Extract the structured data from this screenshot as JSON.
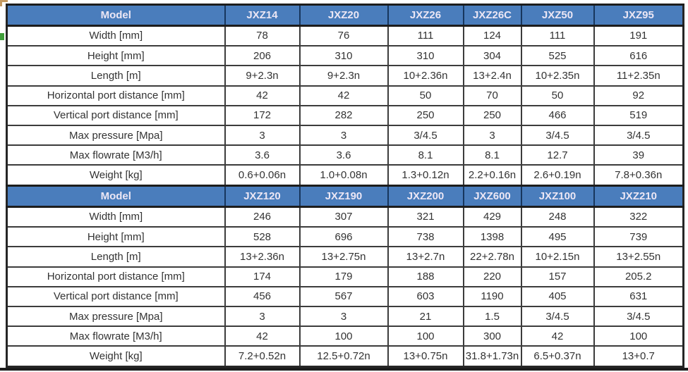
{
  "table": {
    "header_label": "Model",
    "row_labels": [
      "Width [mm]",
      "Height [mm]",
      "Length [m]",
      "Horizontal port distance [mm]",
      "Vertical port distance  [mm]",
      "Max pressure [Mpa]",
      "Max flowrate  [M3/h]",
      "Weight [kg]"
    ],
    "sections": [
      {
        "models": [
          "JXZ14",
          "JXZ20",
          "JXZ26",
          "JXZ26C",
          "JXZ50",
          "JXZ95"
        ],
        "rows": [
          [
            "78",
            "76",
            "111",
            "124",
            "111",
            "191"
          ],
          [
            "206",
            "310",
            "310",
            "304",
            "525",
            "616"
          ],
          [
            "9+2.3n",
            "9+2.3n",
            "10+2.36n",
            "13+2.4n",
            "10+2.35n",
            "11+2.35n"
          ],
          [
            "42",
            "42",
            "50",
            "70",
            "50",
            "92"
          ],
          [
            "172",
            "282",
            "250",
            "250",
            "466",
            "519"
          ],
          [
            "3",
            "3",
            "3/4.5",
            "3",
            "3/4.5",
            "3/4.5"
          ],
          [
            "3.6",
            "3.6",
            "8.1",
            "8.1",
            "12.7",
            "39"
          ],
          [
            "0.6+0.06n",
            "1.0+0.08n",
            "1.3+0.12n",
            "2.2+0.16n",
            "2.6+0.19n",
            "7.8+0.36n"
          ]
        ]
      },
      {
        "models": [
          "JXZ120",
          "JXZ190",
          "JXZ200",
          "JXZ600",
          "JXZ100",
          "JXZ210"
        ],
        "rows": [
          [
            "246",
            "307",
            "321",
            "429",
            "248",
            "322"
          ],
          [
            "528",
            "696",
            "738",
            "1398",
            "495",
            "739"
          ],
          [
            "13+2.36n",
            "13+2.75n",
            "13+2.7n",
            "22+2.78n",
            "10+2.15n",
            "13+2.55n"
          ],
          [
            "174",
            "179",
            "188",
            "220",
            "157",
            "205.2"
          ],
          [
            "456",
            "567",
            "603",
            "1190",
            "405",
            "631"
          ],
          [
            "3",
            "3",
            "21",
            "1.5",
            "3/4.5",
            "3/4.5"
          ],
          [
            "42",
            "100",
            "100",
            "300",
            "42",
            "100"
          ],
          [
            "7.2+0.52n",
            "12.5+0.72n",
            "13+0.75n",
            "31.8+1.73n",
            "6.5+0.37n",
            "13+0.7"
          ]
        ]
      }
    ]
  },
  "colors": {
    "header_bg": "#4a7dbc",
    "header_text": "#ece7f5",
    "cell_text": "#333333",
    "grid_border": "#3c3c3c",
    "header_border": "#17365d",
    "corner_mark": "#c49a62",
    "green_tick": "#3f9e3a"
  }
}
